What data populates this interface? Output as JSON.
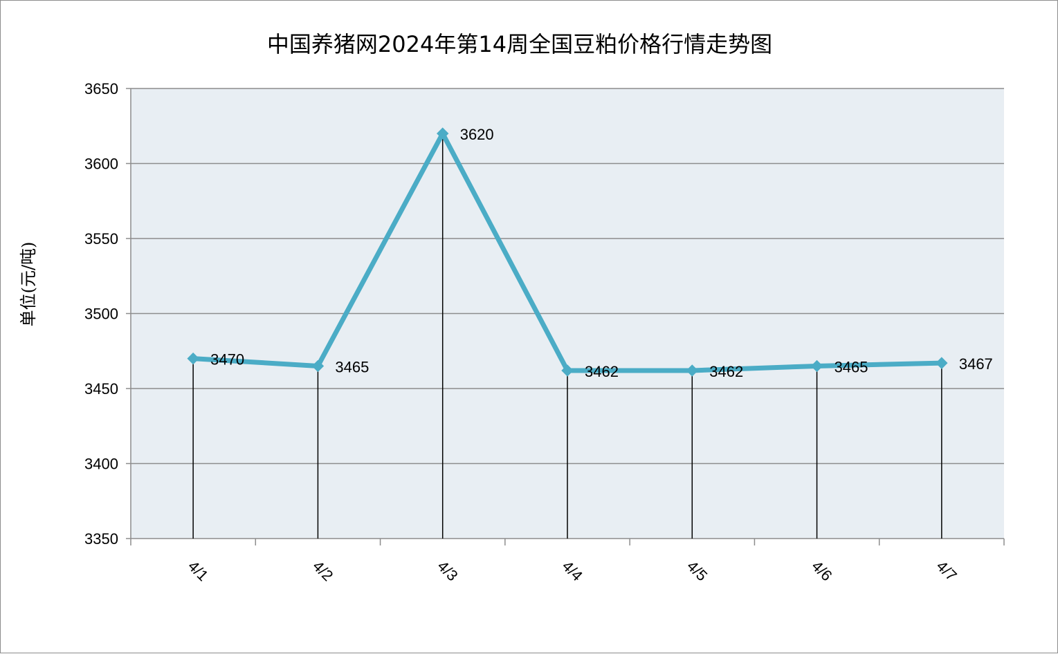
{
  "chart_data": {
    "type": "line",
    "title": "中国养猪网2024年第14周全国豆粕价格行情走势图",
    "xlabel": "",
    "ylabel": "单位(元/吨)",
    "categories": [
      "4/1",
      "4/2",
      "4/3",
      "4/4",
      "4/5",
      "4/6",
      "4/7"
    ],
    "series": [
      {
        "values": [
          3470,
          3465,
          3620,
          3462,
          3462,
          3465,
          3467
        ]
      }
    ],
    "data_labels": [
      "3470",
      "3465",
      "3620",
      "3462",
      "3462",
      "3465",
      "3467"
    ],
    "ylim": [
      3350,
      3650
    ],
    "yticks": [
      3350,
      3400,
      3450,
      3500,
      3550,
      3600,
      3650
    ],
    "grid": true,
    "drop_lines": true,
    "legend": "none",
    "colors": {
      "line": "#4bacc6",
      "plot_background": "#e8eef3",
      "gridline": "#8c8c8c",
      "drop_line": "#000000"
    }
  }
}
